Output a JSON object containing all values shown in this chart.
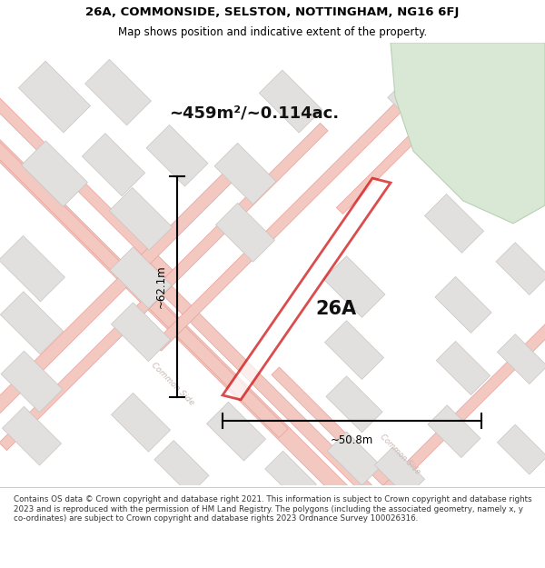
{
  "title_line1": "26A, COMMONSIDE, SELSTON, NOTTINGHAM, NG16 6FJ",
  "title_line2": "Map shows position and indicative extent of the property.",
  "area_label": "~459m²/~0.114ac.",
  "plot_label": "26A",
  "dim_vertical": "~62.1m",
  "dim_horizontal": "~50.8m",
  "street_label1": "Common Side",
  "street_label2": "Common Side",
  "footer_text": "Contains OS data © Crown copyright and database right 2021. This information is subject to Crown copyright and database rights 2023 and is reproduced with the permission of HM Land Registry. The polygons (including the associated geometry, namely x, y co-ordinates) are subject to Crown copyright and database rights 2023 Ordnance Survey 100026316.",
  "bg_color": "#ffffff",
  "map_bg": "#f7f4f2",
  "road_color": "#f2c8c0",
  "road_line_color": "#e8a098",
  "building_color": "#e2e0de",
  "building_edge": "#c8c4c0",
  "green_fill": "#d8e8d4",
  "green_edge": "#b8d0b4",
  "plot_edge": "#cc0000",
  "dim_color": "#000000",
  "title_color": "#000000",
  "street_text_color": "#c8b8b4"
}
